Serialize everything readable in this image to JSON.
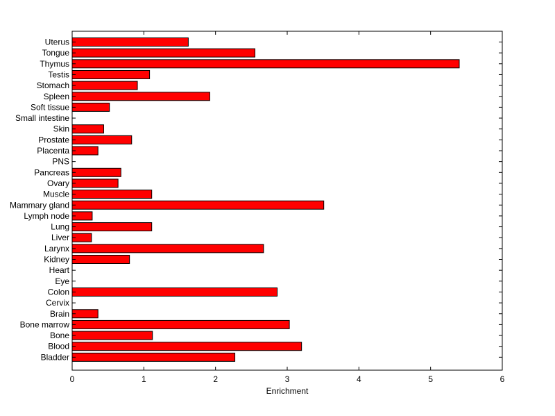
{
  "chart_data": {
    "type": "bar",
    "orientation": "horizontal",
    "title": "",
    "xlabel": "Enrichment",
    "ylabel": "",
    "xlim": [
      0,
      6
    ],
    "x_ticks": [
      "0",
      "1",
      "2",
      "3",
      "4",
      "5",
      "6"
    ],
    "grid": false,
    "legend": "none",
    "bar_color": "#ff0000",
    "bar_edge_color": "#000000",
    "categories": [
      "Uterus",
      "Tongue",
      "Thymus",
      "Testis",
      "Stomach",
      "Spleen",
      "Soft tissue",
      "Small intestine",
      "Skin",
      "Prostate",
      "Placenta",
      "PNS",
      "Pancreas",
      "Ovary",
      "Muscle",
      "Mammary gland",
      "Lymph node",
      "Lung",
      "Liver",
      "Larynx",
      "Kidney",
      "Heart",
      "Eye",
      "Colon",
      "Cervix",
      "Brain",
      "Bone marrow",
      "Bone",
      "Blood",
      "Bladder"
    ],
    "values": [
      1.62,
      2.55,
      5.4,
      1.08,
      0.91,
      1.92,
      0.52,
      0,
      0.44,
      0.83,
      0.36,
      0,
      0.68,
      0.64,
      1.11,
      3.51,
      0.28,
      1.11,
      0.27,
      2.67,
      0.8,
      0,
      0,
      2.86,
      0,
      0.36,
      3.03,
      1.12,
      3.2,
      2.27
    ]
  }
}
